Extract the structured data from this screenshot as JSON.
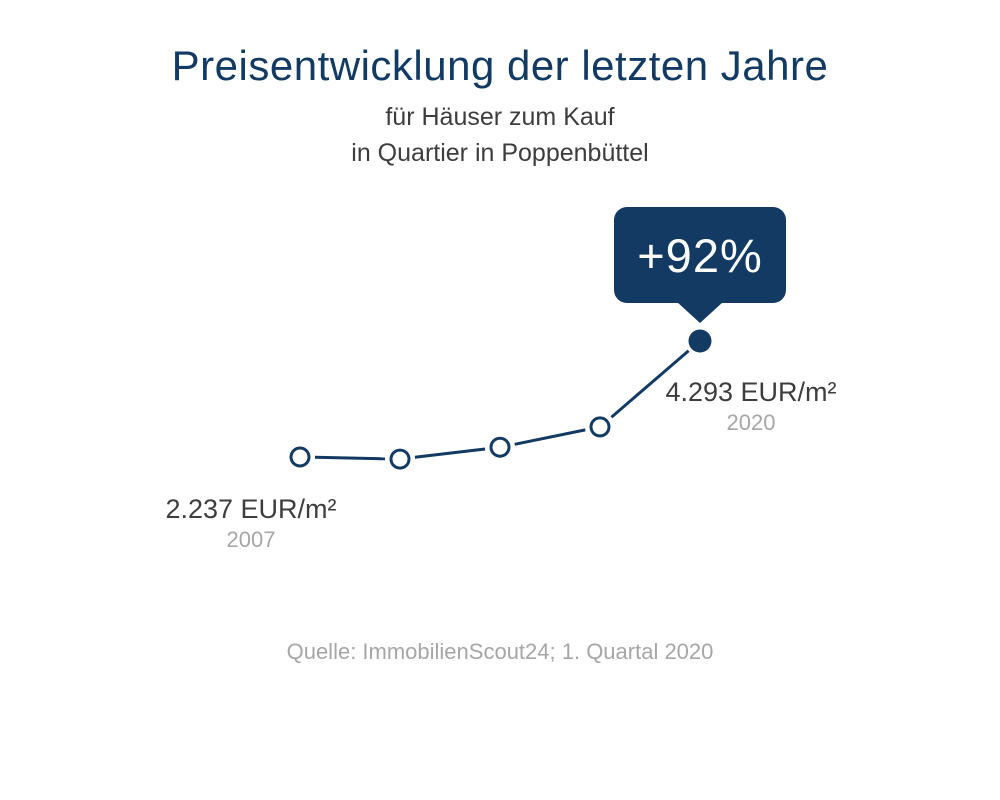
{
  "header": {
    "title": "Preisentwicklung der letzten Jahre",
    "subtitle_line1": "für Häuser zum Kauf",
    "subtitle_line2": "in Quartier in Poppenbüttel"
  },
  "badge": {
    "label": "+92%"
  },
  "annotations": {
    "start": {
      "value": "2.237 EUR/m²",
      "year": "2007"
    },
    "end": {
      "value": "4.293 EUR/m²",
      "year": "2020"
    }
  },
  "source": {
    "text": "Quelle: ImmobilienScout24; 1. Quartal 2020"
  },
  "colors": {
    "navy": "#123A63",
    "text_dark": "#3D3D3D",
    "text_gray": "#A6A6A6",
    "background": "#FFFFFF"
  },
  "chart_data": {
    "type": "line",
    "title": "Preisentwicklung der letzten Jahre",
    "subtitle": "für Häuser zum Kauf in Quartier in Poppenbüttel",
    "unit": "EUR/m²",
    "categories": [
      "2007",
      "",
      "",
      "",
      "2020"
    ],
    "values": [
      2237,
      2200,
      2410,
      2770,
      4293
    ],
    "markers": [
      "open",
      "open",
      "open",
      "open",
      "filled"
    ],
    "labeled_points": [
      {
        "year": "2007",
        "value": 2237,
        "label": "2.237 EUR/m²"
      },
      {
        "year": "2020",
        "value": 4293,
        "label": "4.293 EUR/m²"
      }
    ],
    "change_percent": "+92%",
    "grid": false,
    "axes_visible": false,
    "legend": false
  }
}
